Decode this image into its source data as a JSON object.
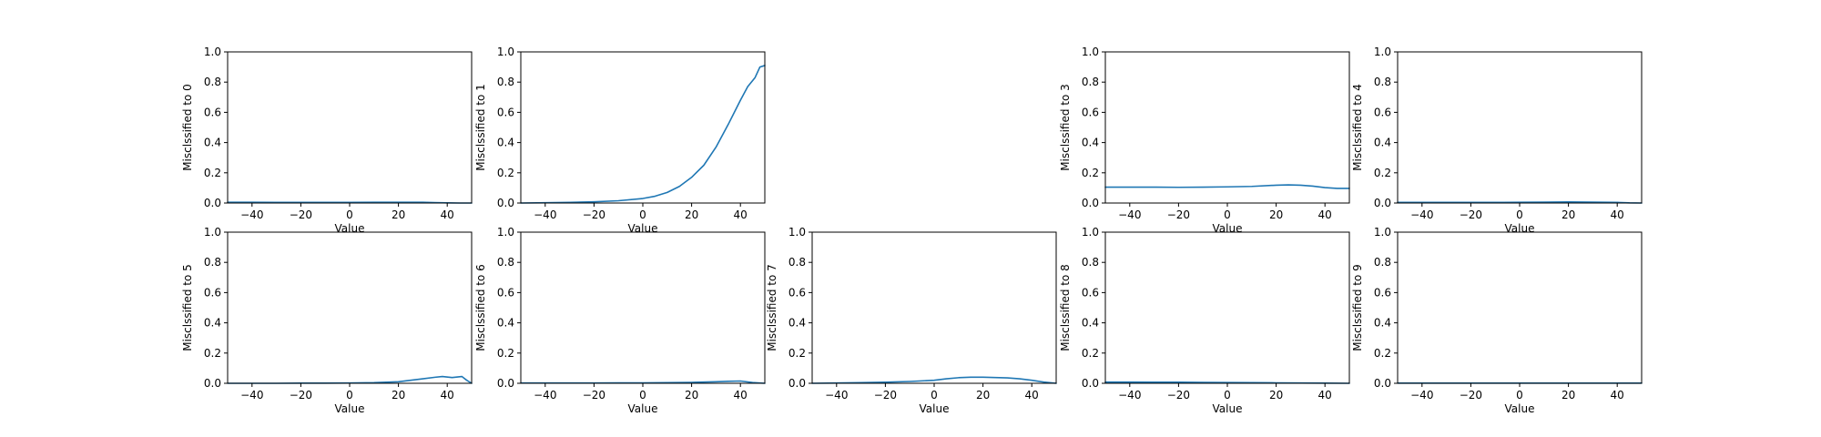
{
  "figure": {
    "line_color": "#1f77b4"
  },
  "chart_data": [
    {
      "type": "line",
      "xlabel": "Value",
      "ylabel": "Misclssified to 0",
      "xlim": [
        -50,
        50
      ],
      "ylim": [
        0,
        1
      ],
      "xticks": [
        -40,
        -20,
        0,
        20,
        40
      ],
      "xtick_labels": [
        "−40",
        "−20",
        "0",
        "20",
        "40"
      ],
      "yticks": [
        0,
        0.2,
        0.4,
        0.6,
        0.8,
        1.0
      ],
      "ytick_labels": [
        "0.0",
        "0.2",
        "0.4",
        "0.6",
        "0.8",
        "1.0"
      ],
      "x": [
        -50,
        -40,
        -30,
        -20,
        -10,
        0,
        10,
        20,
        30,
        35,
        40,
        45,
        50
      ],
      "y": [
        0.005,
        0.005,
        0.004,
        0.004,
        0.004,
        0.004,
        0.005,
        0.005,
        0.005,
        0.003,
        0.001,
        0.0,
        0.0
      ]
    },
    {
      "type": "line",
      "xlabel": "Value",
      "ylabel": "Misclssified to 1",
      "xlim": [
        -50,
        50
      ],
      "ylim": [
        0,
        1
      ],
      "xticks": [
        -40,
        -20,
        0,
        20,
        40
      ],
      "xtick_labels": [
        "−40",
        "−20",
        "0",
        "20",
        "40"
      ],
      "yticks": [
        0,
        0.2,
        0.4,
        0.6,
        0.8,
        1.0
      ],
      "ytick_labels": [
        "0.0",
        "0.2",
        "0.4",
        "0.6",
        "0.8",
        "1.0"
      ],
      "x": [
        -50,
        -40,
        -30,
        -20,
        -10,
        0,
        5,
        10,
        15,
        20,
        25,
        30,
        35,
        40,
        43,
        46,
        48,
        50
      ],
      "y": [
        0.0,
        0.002,
        0.004,
        0.008,
        0.015,
        0.03,
        0.045,
        0.07,
        0.11,
        0.17,
        0.25,
        0.37,
        0.52,
        0.68,
        0.77,
        0.83,
        0.9,
        0.91
      ]
    },
    null,
    {
      "type": "line",
      "xlabel": "Value",
      "ylabel": "Misclssified to 3",
      "xlim": [
        -50,
        50
      ],
      "ylim": [
        0,
        1
      ],
      "xticks": [
        -40,
        -20,
        0,
        20,
        40
      ],
      "xtick_labels": [
        "−40",
        "−20",
        "0",
        "20",
        "40"
      ],
      "yticks": [
        0,
        0.2,
        0.4,
        0.6,
        0.8,
        1.0
      ],
      "ytick_labels": [
        "0.0",
        "0.2",
        "0.4",
        "0.6",
        "0.8",
        "1.0"
      ],
      "x": [
        -50,
        -40,
        -30,
        -20,
        -10,
        0,
        10,
        20,
        25,
        30,
        35,
        40,
        45,
        50
      ],
      "y": [
        0.105,
        0.105,
        0.105,
        0.104,
        0.105,
        0.107,
        0.11,
        0.118,
        0.12,
        0.118,
        0.112,
        0.102,
        0.097,
        0.097
      ]
    },
    {
      "type": "line",
      "xlabel": "Value",
      "ylabel": "Misclssified to 4",
      "xlim": [
        -50,
        50
      ],
      "ylim": [
        0,
        1
      ],
      "xticks": [
        -40,
        -20,
        0,
        20,
        40
      ],
      "xtick_labels": [
        "−40",
        "−20",
        "0",
        "20",
        "40"
      ],
      "yticks": [
        0,
        0.2,
        0.4,
        0.6,
        0.8,
        1.0
      ],
      "ytick_labels": [
        "0.0",
        "0.2",
        "0.4",
        "0.6",
        "0.8",
        "1.0"
      ],
      "x": [
        -50,
        -40,
        -30,
        -20,
        -10,
        0,
        10,
        20,
        30,
        40,
        45,
        50
      ],
      "y": [
        0.004,
        0.004,
        0.004,
        0.004,
        0.004,
        0.005,
        0.006,
        0.007,
        0.006,
        0.004,
        0.001,
        0.0
      ]
    },
    {
      "type": "line",
      "xlabel": "Value",
      "ylabel": "Misclssified to 5",
      "xlim": [
        -50,
        50
      ],
      "ylim": [
        0,
        1
      ],
      "xticks": [
        -40,
        -20,
        0,
        20,
        40
      ],
      "xtick_labels": [
        "−40",
        "−20",
        "0",
        "20",
        "40"
      ],
      "yticks": [
        0,
        0.2,
        0.4,
        0.6,
        0.8,
        1.0
      ],
      "ytick_labels": [
        "0.0",
        "0.2",
        "0.4",
        "0.6",
        "0.8",
        "1.0"
      ],
      "x": [
        -50,
        -40,
        -30,
        -20,
        -10,
        0,
        10,
        20,
        25,
        30,
        35,
        38,
        42,
        46,
        48,
        50
      ],
      "y": [
        0.0,
        0.0,
        0.0,
        0.001,
        0.001,
        0.002,
        0.004,
        0.01,
        0.02,
        0.03,
        0.04,
        0.045,
        0.038,
        0.045,
        0.02,
        0.0
      ]
    },
    {
      "type": "line",
      "xlabel": "Value",
      "ylabel": "Misclssified to 6",
      "xlim": [
        -50,
        50
      ],
      "ylim": [
        0,
        1
      ],
      "xticks": [
        -40,
        -20,
        0,
        20,
        40
      ],
      "xtick_labels": [
        "−40",
        "−20",
        "0",
        "20",
        "40"
      ],
      "yticks": [
        0,
        0.2,
        0.4,
        0.6,
        0.8,
        1.0
      ],
      "ytick_labels": [
        "0.0",
        "0.2",
        "0.4",
        "0.6",
        "0.8",
        "1.0"
      ],
      "x": [
        -50,
        -40,
        -30,
        -20,
        -10,
        0,
        10,
        20,
        30,
        35,
        40,
        45,
        50
      ],
      "y": [
        0.002,
        0.002,
        0.002,
        0.002,
        0.003,
        0.003,
        0.004,
        0.006,
        0.01,
        0.013,
        0.015,
        0.005,
        0.0
      ]
    },
    {
      "type": "line",
      "xlabel": "Value",
      "ylabel": "Misclssified to 7",
      "xlim": [
        -50,
        50
      ],
      "ylim": [
        0,
        1
      ],
      "xticks": [
        -40,
        -20,
        0,
        20,
        40
      ],
      "xtick_labels": [
        "−40",
        "−20",
        "0",
        "20",
        "40"
      ],
      "yticks": [
        0,
        0.2,
        0.4,
        0.6,
        0.8,
        1.0
      ],
      "ytick_labels": [
        "0.0",
        "0.2",
        "0.4",
        "0.6",
        "0.8",
        "1.0"
      ],
      "x": [
        -50,
        -40,
        -30,
        -20,
        -10,
        0,
        5,
        10,
        15,
        20,
        25,
        30,
        35,
        40,
        45,
        50
      ],
      "y": [
        0.0,
        0.002,
        0.004,
        0.007,
        0.012,
        0.02,
        0.03,
        0.037,
        0.04,
        0.04,
        0.038,
        0.036,
        0.03,
        0.02,
        0.008,
        0.0
      ]
    },
    {
      "type": "line",
      "xlabel": "Value",
      "ylabel": "Misclssified to 8",
      "xlim": [
        -50,
        50
      ],
      "ylim": [
        0,
        1
      ],
      "xticks": [
        -40,
        -20,
        0,
        20,
        40
      ],
      "xtick_labels": [
        "−40",
        "−20",
        "0",
        "20",
        "40"
      ],
      "yticks": [
        0,
        0.2,
        0.4,
        0.6,
        0.8,
        1.0
      ],
      "ytick_labels": [
        "0.0",
        "0.2",
        "0.4",
        "0.6",
        "0.8",
        "1.0"
      ],
      "x": [
        -50,
        -40,
        -30,
        -20,
        -10,
        0,
        10,
        20,
        30,
        40,
        50
      ],
      "y": [
        0.008,
        0.008,
        0.007,
        0.007,
        0.006,
        0.005,
        0.004,
        0.003,
        0.002,
        0.001,
        0.0
      ]
    },
    {
      "type": "line",
      "xlabel": "Value",
      "ylabel": "Misclssified to 9",
      "xlim": [
        -50,
        50
      ],
      "ylim": [
        0,
        1
      ],
      "xticks": [
        -40,
        -20,
        0,
        20,
        40
      ],
      "xtick_labels": [
        "−40",
        "−20",
        "0",
        "20",
        "40"
      ],
      "yticks": [
        0,
        0.2,
        0.4,
        0.6,
        0.8,
        1.0
      ],
      "ytick_labels": [
        "0.0",
        "0.2",
        "0.4",
        "0.6",
        "0.8",
        "1.0"
      ],
      "x": [
        -50,
        -30,
        -10,
        10,
        30,
        50
      ],
      "y": [
        0.001,
        0.001,
        0.001,
        0.001,
        0.001,
        0.001
      ]
    }
  ]
}
